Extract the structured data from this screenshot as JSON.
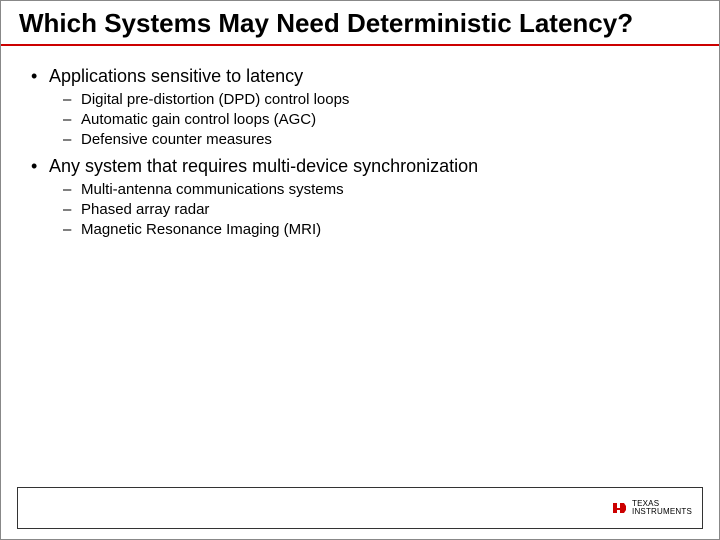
{
  "title": "Which Systems May Need Deterministic Latency?",
  "title_fontsize": 26,
  "title_color": "#000000",
  "underline_color": "#cc0000",
  "underline_height": 2,
  "body_color": "#000000",
  "l1_fontsize": 18,
  "l2_fontsize": 15,
  "background_color": "#ffffff",
  "bullets": [
    {
      "text": "Applications sensitive to latency",
      "sub": [
        "Digital pre-distortion (DPD) control loops",
        "Automatic gain control loops (AGC)",
        "Defensive counter measures"
      ]
    },
    {
      "text": "Any system that requires multi-device synchronization",
      "sub": [
        "Multi-antenna communications systems",
        "Phased array radar",
        "Magnetic Resonance Imaging (MRI)"
      ]
    }
  ],
  "logo": {
    "line1": "TEXAS",
    "line2": "INSTRUMENTS",
    "icon_color": "#cc0000"
  }
}
